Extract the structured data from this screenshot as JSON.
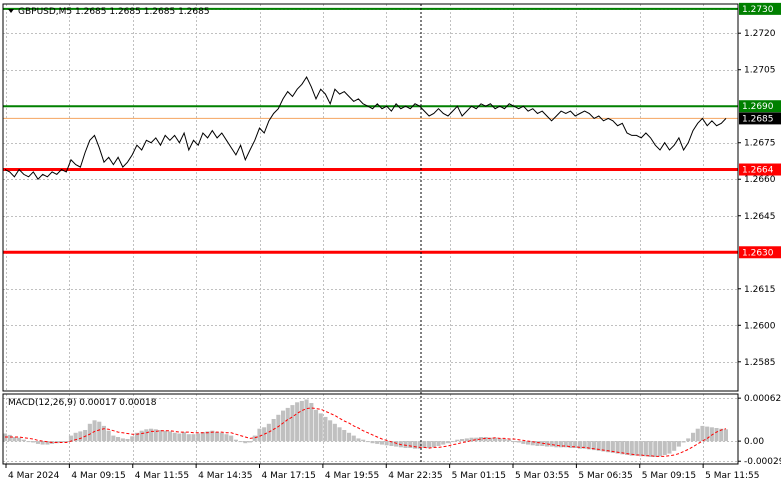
{
  "chart_data": [
    {
      "type": "line",
      "title": "GBPUSD,M5  1.2685 1.2685 1.2685 1.2685",
      "symbol": "GBPUSD,M5",
      "ohlc": [
        "1.2685",
        "1.2685",
        "1.2685",
        "1.2685"
      ],
      "ylim": [
        1.2573,
        1.2732
      ],
      "y_ticks": [
        "1.2730",
        "1.2720",
        "1.2705",
        "1.2690",
        "1.2675",
        "1.2660",
        "1.2645",
        "1.2630",
        "1.2615",
        "1.2600",
        "1.2585"
      ],
      "x_ticks": [
        "4 Mar 2024",
        "4 Mar 09:15",
        "4 Mar 11:55",
        "4 Mar 14:35",
        "4 Mar 17:15",
        "4 Mar 19:55",
        "4 Mar 22:35",
        "5 Mar 01:15",
        "5 Mar 03:55",
        "5 Mar 06:35",
        "5 Mar 09:15",
        "5 Mar 11:55"
      ],
      "grid": true,
      "levels": [
        {
          "value": 1.273,
          "label": "1.2730",
          "color": "#008000"
        },
        {
          "value": 1.269,
          "label": "1.2690",
          "color": "#008000"
        },
        {
          "value": 1.2664,
          "label": "1.2664",
          "color": "#ff0000"
        },
        {
          "value": 1.263,
          "label": "1.2630",
          "color": "#ff0000"
        }
      ],
      "current_price": {
        "value": 1.2685,
        "label": "1.2685",
        "color": "#000000"
      },
      "series": [
        {
          "values": [
            1.2664,
            1.2663,
            1.2661,
            1.2664,
            1.2662,
            1.2661,
            1.2663,
            1.266,
            1.2662,
            1.2661,
            1.2663,
            1.2662,
            1.2664,
            1.2663,
            1.2668,
            1.2666,
            1.2665,
            1.2671,
            1.2676,
            1.2678,
            1.2673,
            1.2667,
            1.2669,
            1.2666,
            1.2669,
            1.2665,
            1.2667,
            1.267,
            1.2674,
            1.2672,
            1.2676,
            1.2675,
            1.2677,
            1.2674,
            1.2678,
            1.2676,
            1.2678,
            1.2675,
            1.2679,
            1.2672,
            1.2676,
            1.2674,
            1.2679,
            1.2677,
            1.268,
            1.2677,
            1.2679,
            1.2676,
            1.2673,
            1.267,
            1.2674,
            1.2668,
            1.2672,
            1.2676,
            1.2681,
            1.2679,
            1.2684,
            1.2687,
            1.2689,
            1.2693,
            1.2696,
            1.2694,
            1.2697,
            1.2699,
            1.2702,
            1.2698,
            1.2693,
            1.2697,
            1.2695,
            1.2691,
            1.2697,
            1.2695,
            1.2696,
            1.2694,
            1.2692,
            1.2693,
            1.2691,
            1.269,
            1.2689,
            1.2691,
            1.2689,
            1.269,
            1.2688,
            1.2691,
            1.2689,
            1.269,
            1.2689,
            1.2691,
            1.269,
            1.2688,
            1.2686,
            1.2687,
            1.2689,
            1.2687,
            1.2686,
            1.2688,
            1.269,
            1.2686,
            1.2688,
            1.269,
            1.2689,
            1.2691,
            1.269,
            1.2691,
            1.2689,
            1.269,
            1.2689,
            1.2691,
            1.269,
            1.2689,
            1.269,
            1.2688,
            1.2689,
            1.2687,
            1.2688,
            1.2686,
            1.2684,
            1.2686,
            1.2688,
            1.2687,
            1.2688,
            1.2686,
            1.2687,
            1.2688,
            1.2687,
            1.2685,
            1.2686,
            1.2684,
            1.2685,
            1.2684,
            1.2682,
            1.2683,
            1.2679,
            1.2678,
            1.2678,
            1.2677,
            1.2679,
            1.2677,
            1.2674,
            1.2672,
            1.2675,
            1.2672,
            1.2674,
            1.2677,
            1.2672,
            1.2675,
            1.268,
            1.2683,
            1.2685,
            1.2682,
            1.2684,
            1.2682,
            1.2683,
            1.2685
          ]
        }
      ]
    },
    {
      "type": "bar",
      "title": "MACD(12,26,9) 0.00017 0.00018",
      "indicator": "MACD(12,26,9)",
      "macd_value": "0.00017",
      "signal_value": "0.00018",
      "ylim": [
        -0.00033,
        0.00068
      ],
      "y_ticks": [
        "0.00062",
        "0.00",
        "-0.00029"
      ],
      "grid": true,
      "series": [
        {
          "values": [
            0.00011,
            9e-05,
            6e-05,
            5e-05,
            2e-05,
            0.0,
            -2e-05,
            -4e-05,
            -5e-05,
            -5e-05,
            -4e-05,
            -3e-05,
            -2e-05,
            -1e-05,
            8e-05,
            0.00012,
            0.00014,
            0.00016,
            0.00025,
            0.0003,
            0.00028,
            0.00022,
            0.00015,
            8e-05,
            6e-05,
            4e-05,
            3e-05,
            7e-05,
            0.00012,
            0.00015,
            0.00017,
            0.00018,
            0.00017,
            0.00016,
            0.00015,
            0.00014,
            0.00012,
            0.00011,
            0.00013,
            0.0001,
            0.0001,
            0.00011,
            0.00013,
            0.00014,
            0.00015,
            0.00013,
            0.00012,
            0.0001,
            8e-05,
            2e-05,
            0.0,
            -3e-05,
            -2e-05,
            8e-05,
            0.00018,
            0.0002,
            0.00025,
            0.00032,
            0.00038,
            0.00044,
            0.00048,
            0.00052,
            0.00056,
            0.00058,
            0.0006,
            0.00055,
            0.00045,
            0.0004,
            0.00035,
            0.0003,
            0.00025,
            0.0002,
            0.00016,
            0.00012,
            8e-05,
            4e-05,
            2e-05,
            -1e-05,
            -3e-05,
            -4e-05,
            -5e-05,
            -6e-05,
            -7e-05,
            -8e-05,
            -9e-05,
            -0.0001,
            -0.0001,
            -0.00011,
            -0.00011,
            -0.0001,
            -0.0001,
            -9e-05,
            -7e-05,
            -5e-05,
            -3e-05,
            0.0,
            2e-05,
            3e-05,
            4e-05,
            5e-05,
            5e-05,
            6e-05,
            6e-05,
            5e-05,
            5e-05,
            4e-05,
            3e-05,
            2e-05,
            0.0,
            -2e-05,
            -4e-05,
            -5e-05,
            -6e-05,
            -7e-05,
            -7e-05,
            -8e-05,
            -8e-05,
            -9e-05,
            -9e-05,
            -9e-05,
            -0.0001,
            -0.0001,
            -0.00011,
            -0.00011,
            -0.00012,
            -0.00013,
            -0.00014,
            -0.00015,
            -0.00016,
            -0.00017,
            -0.00018,
            -0.00019,
            -0.0002,
            -0.00021,
            -0.00021,
            -0.00022,
            -0.00022,
            -0.00023,
            -0.00023,
            -0.00022,
            -0.0002,
            -0.00018,
            -0.00014,
            -8e-05,
            -2e-05,
            4e-05,
            0.00012,
            0.00018,
            0.00022,
            0.00021,
            0.0002,
            0.00019,
            0.00018,
            0.00017
          ]
        },
        {
          "values": [
            6e-05,
            6e-05,
            6e-05,
            6e-05,
            5e-05,
            4e-05,
            3e-05,
            1e-05,
            0.0,
            -1e-05,
            -2e-05,
            -2e-05,
            -2e-05,
            -2e-05,
            0.0,
            2e-05,
            4e-05,
            7e-05,
            0.0001,
            0.00014,
            0.00016,
            0.00018,
            0.00017,
            0.00015,
            0.00013,
            0.00012,
            0.00011,
            0.0001,
            0.0001,
            0.00011,
            0.00012,
            0.00014,
            0.00014,
            0.00015,
            0.00015,
            0.00015,
            0.00014,
            0.00013,
            0.00013,
            0.00013,
            0.00012,
            0.00012,
            0.00012,
            0.00012,
            0.00013,
            0.00013,
            0.00013,
            0.00012,
            0.00012,
            0.0001,
            8e-05,
            6e-05,
            4e-05,
            5e-05,
            7e-05,
            0.0001,
            0.00013,
            0.00017,
            0.00021,
            0.00026,
            0.00031,
            0.00035,
            0.0004,
            0.00044,
            0.00047,
            0.00048,
            0.00047,
            0.00046,
            0.00043,
            0.0004,
            0.00037,
            0.00033,
            0.00029,
            0.00026,
            0.00022,
            0.00019,
            0.00015,
            0.00012,
            9e-05,
            6e-05,
            3e-05,
            1e-05,
            -1e-05,
            -3e-05,
            -5e-05,
            -6e-05,
            -7e-05,
            -8e-05,
            -9e-05,
            -9e-05,
            -0.0001,
            -9e-05,
            -9e-05,
            -8e-05,
            -7e-05,
            -5e-05,
            -4e-05,
            -2e-05,
            -1e-05,
            1e-05,
            2e-05,
            3e-05,
            4e-05,
            4e-05,
            5e-05,
            4e-05,
            4e-05,
            3e-05,
            3e-05,
            2e-05,
            1e-05,
            0.0,
            -1e-05,
            -2e-05,
            -3e-05,
            -4e-05,
            -5e-05,
            -6e-05,
            -7e-05,
            -7e-05,
            -8e-05,
            -8e-05,
            -9e-05,
            -9e-05,
            -0.0001,
            -0.00011,
            -0.00012,
            -0.00013,
            -0.00014,
            -0.00015,
            -0.00016,
            -0.00017,
            -0.00018,
            -0.00019,
            -0.0002,
            -0.0002,
            -0.00021,
            -0.00021,
            -0.00022,
            -0.00022,
            -0.00022,
            -0.00021,
            -0.0002,
            -0.00018,
            -0.00015,
            -0.00012,
            -8e-05,
            -4e-05,
            0.0,
            4e-05,
            9e-05,
            0.00013,
            0.00016,
            0.00018
          ]
        }
      ]
    }
  ],
  "colors": {
    "price_line": "#000000",
    "grid": "#c0c0c0",
    "histogram": "#c0c0c0",
    "signal": "#ff0000",
    "crosshair": "#000000"
  }
}
